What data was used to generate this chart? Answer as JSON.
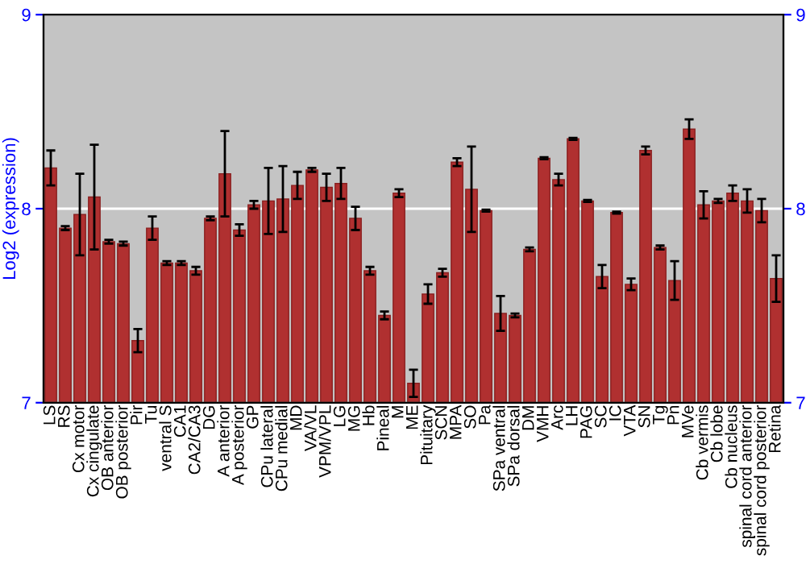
{
  "chart_data": {
    "type": "bar",
    "ylabel": "Log2 (expression)",
    "categories": [
      "LS",
      "RS",
      "Cx motor",
      "Cx cingulate",
      "OB anterior",
      "OB posterior",
      "Pir",
      "Tu",
      "ventral S",
      "CA1",
      "CA2/CA3",
      "DG",
      "A anterior",
      "A posterior",
      "GP",
      "CPu lateral",
      "CPu medial",
      "MD",
      "VA/VL",
      "VPM/VPL",
      "LG",
      "MG",
      "Hb",
      "Pineal",
      "M",
      "ME",
      "Pituitary",
      "SCN",
      "MPA",
      "SO",
      "Pa",
      "SPa ventral",
      "SPa dorsal",
      "DM",
      "VMH",
      "Arc",
      "LH",
      "PAG",
      "SC",
      "IC",
      "VTA",
      "SN",
      "Tg",
      "Pn",
      "MVe",
      "Cb vermis",
      "Cb lobe",
      "Cb nucleus",
      "spinal cord anterior",
      "spinal cord posterior",
      "Retina"
    ],
    "values": [
      8.21,
      7.9,
      7.97,
      8.06,
      7.83,
      7.82,
      7.32,
      7.9,
      7.72,
      7.72,
      7.68,
      7.95,
      8.18,
      7.89,
      8.02,
      8.04,
      8.05,
      8.12,
      8.2,
      8.11,
      8.13,
      7.95,
      7.68,
      7.45,
      8.08,
      7.1,
      7.56,
      7.67,
      8.24,
      8.1,
      7.99,
      7.46,
      7.45,
      7.79,
      8.26,
      8.15,
      8.36,
      8.04,
      7.65,
      7.98,
      7.61,
      8.3,
      7.8,
      7.63,
      8.41,
      8.02,
      8.04,
      8.08,
      8.04,
      7.99,
      7.64
    ],
    "errors": [
      0.09,
      0.01,
      0.21,
      0.27,
      0.01,
      0.01,
      0.06,
      0.06,
      0.01,
      0.01,
      0.02,
      0.01,
      0.22,
      0.03,
      0.02,
      0.17,
      0.17,
      0.07,
      0.01,
      0.07,
      0.08,
      0.06,
      0.02,
      0.02,
      0.02,
      0.07,
      0.05,
      0.02,
      0.02,
      0.22,
      0.005,
      0.09,
      0.01,
      0.01,
      0.005,
      0.03,
      0.005,
      0.005,
      0.06,
      0.005,
      0.03,
      0.02,
      0.01,
      0.1,
      0.05,
      0.07,
      0.01,
      0.04,
      0.06,
      0.06,
      0.12
    ],
    "color": "#b03030",
    "ylim": [
      7,
      9
    ],
    "yticks": [
      7,
      8,
      9
    ],
    "y2lim": [
      7,
      9
    ],
    "y2ticks": [
      7,
      8,
      9
    ],
    "grid": "y"
  }
}
